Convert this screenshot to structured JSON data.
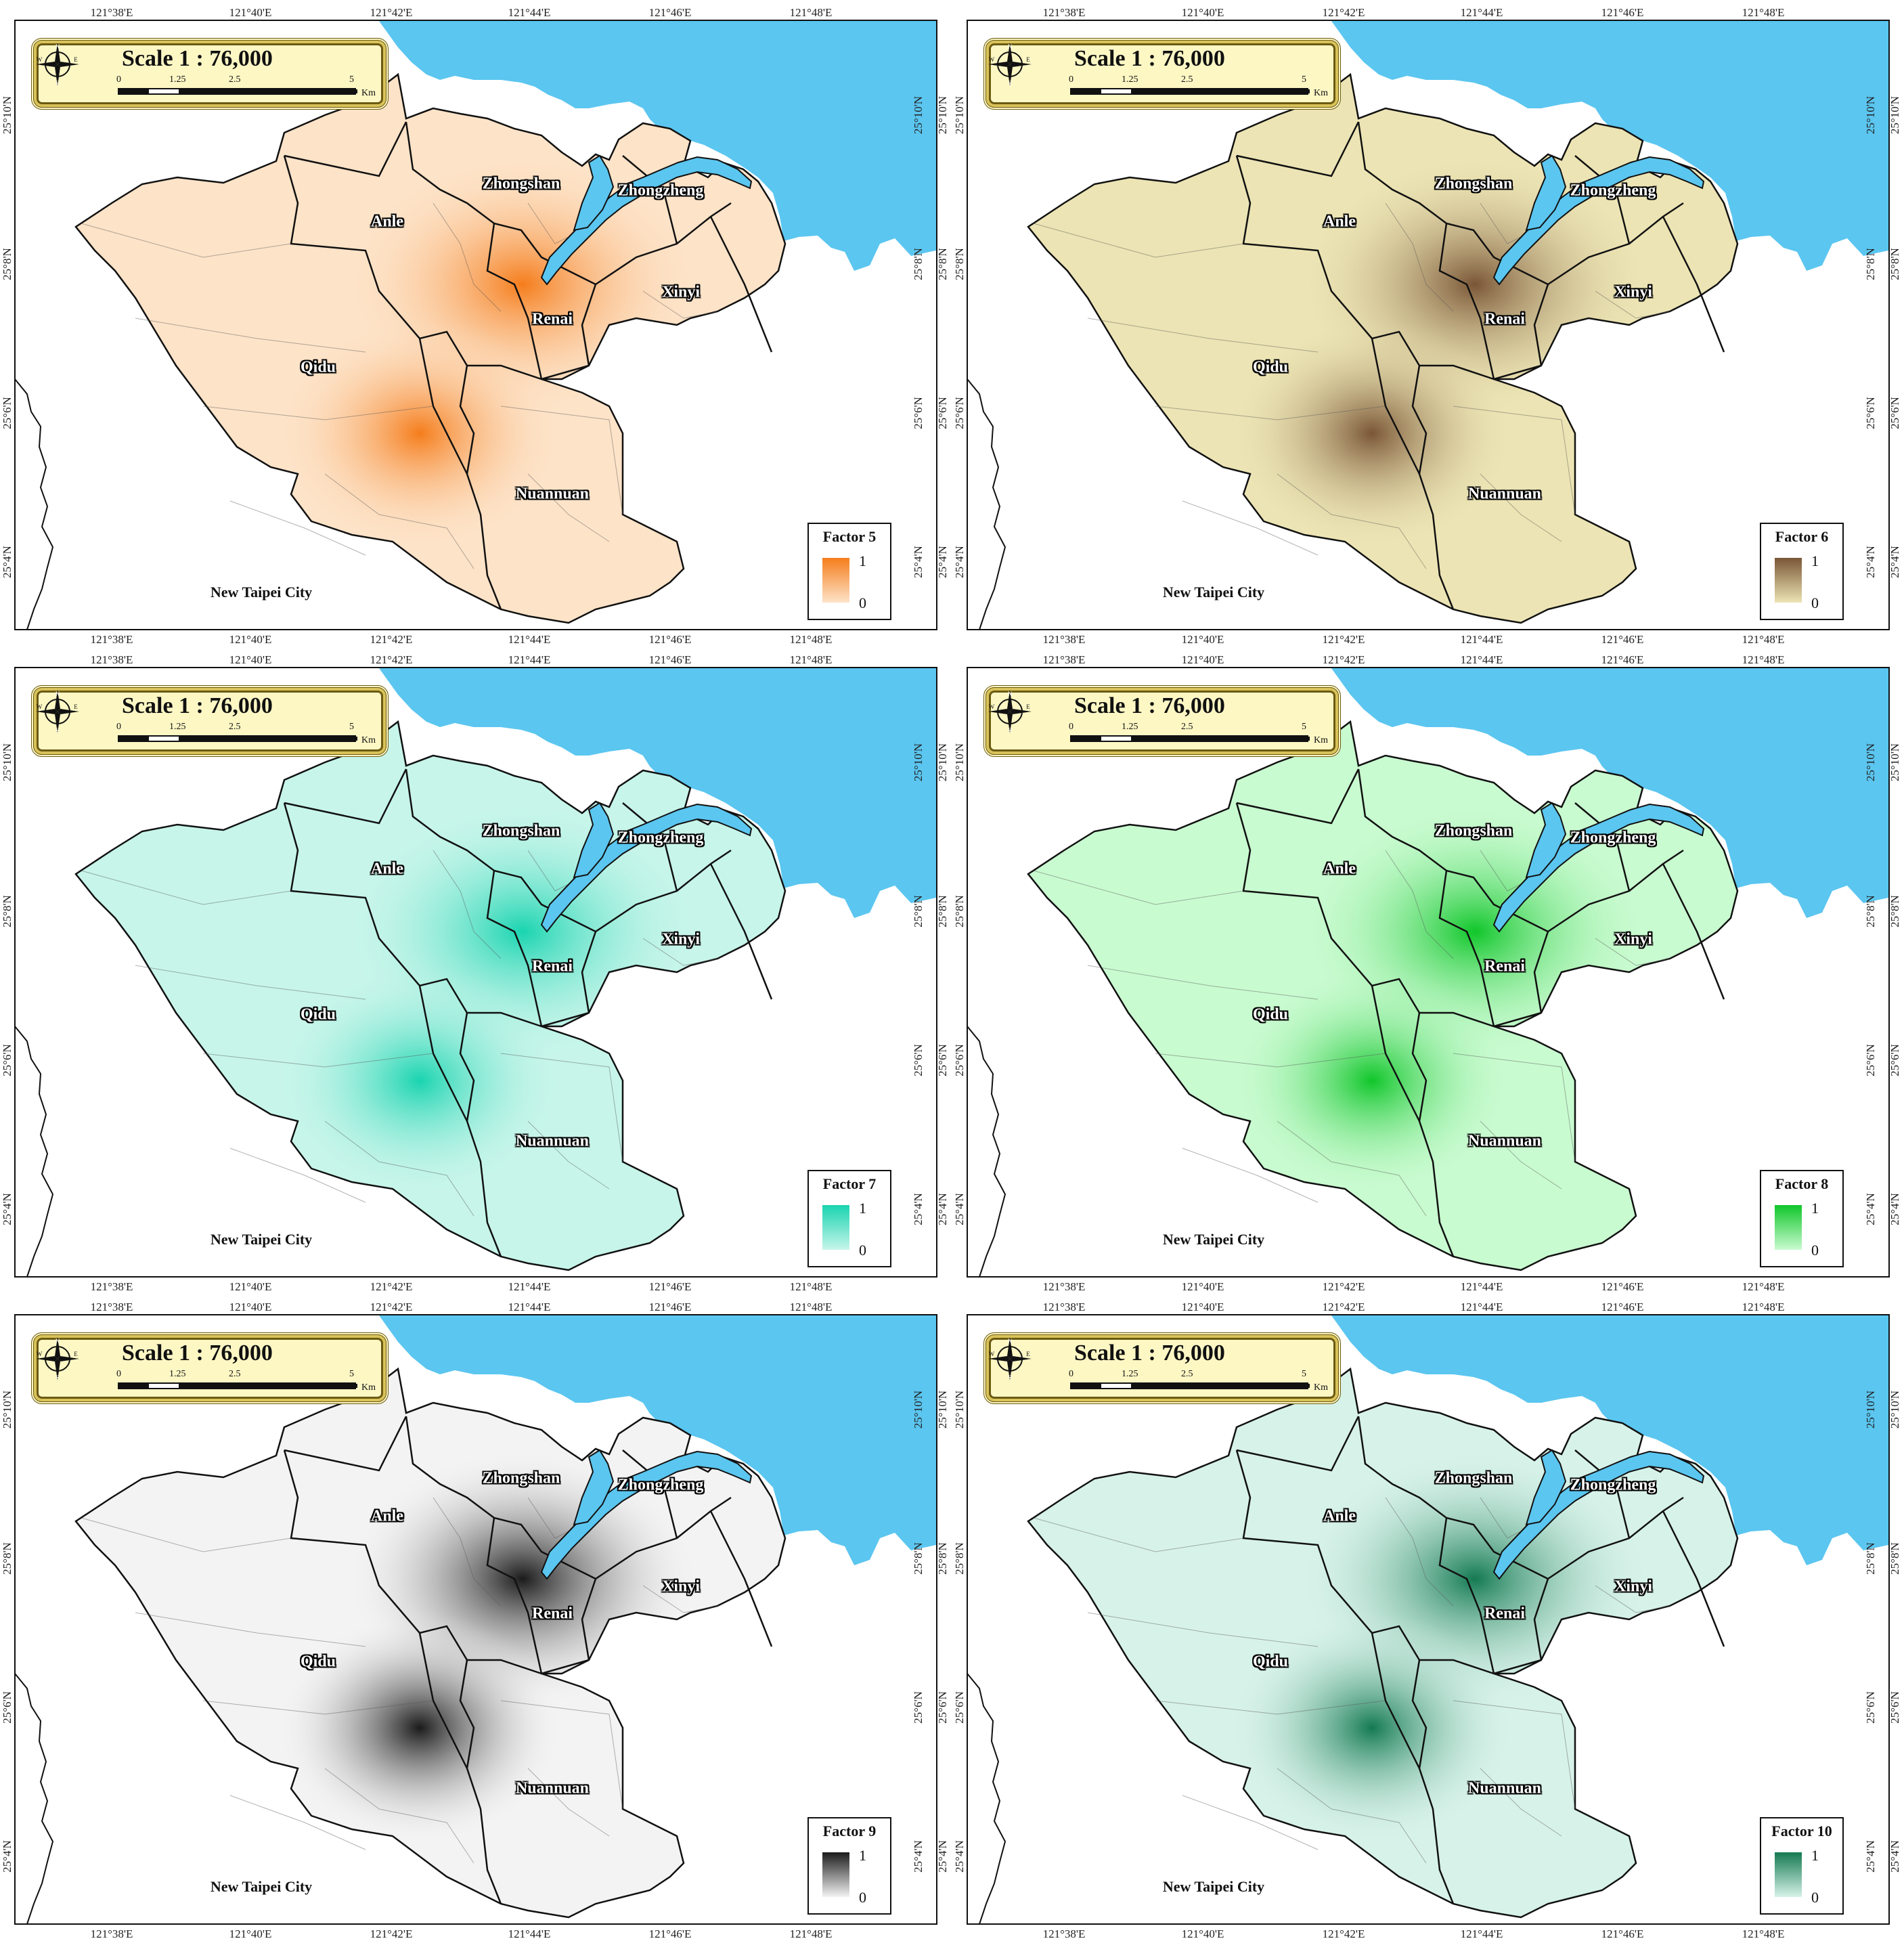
{
  "map": {
    "scale_title": "Scale 1 : 76,000",
    "scale_ticks": [
      "0",
      "1.25",
      "2.5",
      "5"
    ],
    "scale_unit": "Km",
    "compass_letters": {
      "n": "N",
      "e": "E",
      "s": "S",
      "w": "W"
    },
    "lon_labels": [
      "121°38'E",
      "121°40'E",
      "121°42'E",
      "121°44'E",
      "121°46'E",
      "121°48'E"
    ],
    "lat_labels": [
      "25°10'N",
      "25°8'N",
      "25°6'N",
      "25°4'N"
    ],
    "districts": [
      {
        "name": "Zhongshan"
      },
      {
        "name": "Zhongzheng"
      },
      {
        "name": "Anle"
      },
      {
        "name": "Xinyi"
      },
      {
        "name": "Renai"
      },
      {
        "name": "Qidu"
      },
      {
        "name": "Nuannuan"
      }
    ],
    "neighbor_label": "New Taipei City",
    "colors": {
      "sea": "#5bc6f0",
      "land": "#ffffff",
      "boundary": "#111111"
    }
  },
  "panels": [
    {
      "factor": "Factor 5",
      "legend_max": "1",
      "legend_min": "0",
      "color_low": "#fde3c8",
      "color_high": "#f57d1c"
    },
    {
      "factor": "Factor 6",
      "legend_max": "1",
      "legend_min": "0",
      "color_low": "#ece4b4",
      "color_high": "#7a5636"
    },
    {
      "factor": "Factor 7",
      "legend_max": "1",
      "legend_min": "0",
      "color_low": "#c7f5ea",
      "color_high": "#19d4b0"
    },
    {
      "factor": "Factor 8",
      "legend_max": "1",
      "legend_min": "0",
      "color_low": "#c9fbd0",
      "color_high": "#10c62a"
    },
    {
      "factor": "Factor 9",
      "legend_max": "1",
      "legend_min": "0",
      "color_low": "#f3f3f3",
      "color_high": "#1b1b1b"
    },
    {
      "factor": "Factor 10",
      "legend_max": "1",
      "legend_min": "0",
      "color_low": "#d7f2e9",
      "color_high": "#147a52"
    }
  ]
}
